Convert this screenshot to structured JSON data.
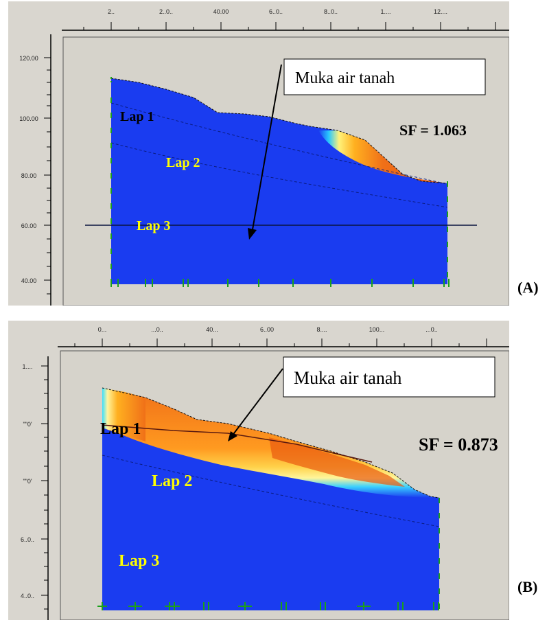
{
  "panels": [
    {
      "id": "A",
      "caption": "(A)",
      "top_ruler_labels": [
        "2..",
        "2..0..",
        "40.00",
        "6..0..",
        "8..0..",
        "1....",
        "12...."
      ],
      "left_ruler_labels": [
        "120.00",
        "100.00",
        "80.00",
        "60.00",
        "40.00"
      ],
      "callout": "Muka air tanah",
      "sf_label": "SF = 1.063",
      "layers": [
        "Lap 1",
        "Lap 2",
        "Lap 3"
      ]
    },
    {
      "id": "B",
      "caption": "(B)",
      "top_ruler_labels": [
        "0...",
        "...0..",
        "40...",
        "6..00",
        "8....",
        "100...",
        "...0.."
      ],
      "left_ruler_labels": [
        "1....",
        "\"\"0'",
        "\"\"0'",
        "6..0..",
        "4..0.."
      ],
      "callout": "Muka air tanah",
      "sf_label": "SF = 0.873",
      "layers": [
        "Lap 1",
        "Lap 2",
        "Lap 3"
      ]
    }
  ],
  "colors": {
    "soil_blue": "#1a3cf0",
    "window_bg": "#d9d6cf",
    "plot_bg": "#d6d3cb",
    "hot_orange": "#f07018",
    "layer_label": "#ffff00"
  }
}
